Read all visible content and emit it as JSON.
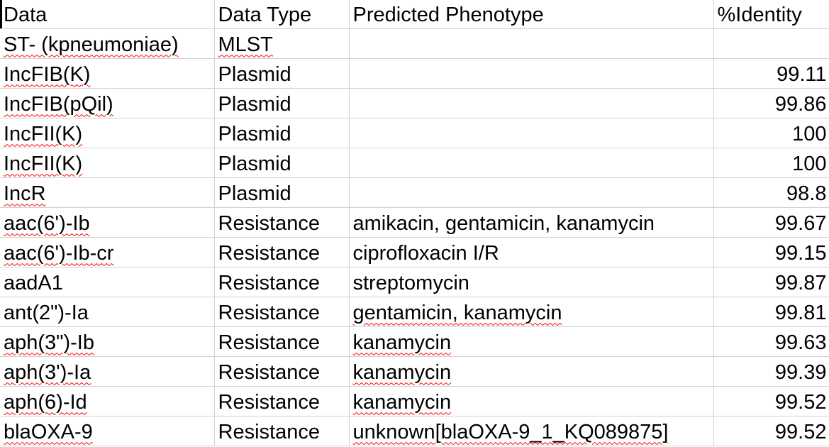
{
  "sheet": {
    "headers": [
      "Data",
      "Data Type",
      "Predicted Phenotype",
      "%Identity"
    ],
    "rows": [
      {
        "data": "ST- (kpneumoniae)",
        "type": "MLST",
        "phenotype": "",
        "identity": ""
      },
      {
        "data": "IncFIB(K)",
        "type": "Plasmid",
        "phenotype": "",
        "identity": "99.11"
      },
      {
        "data": "IncFIB(pQil)",
        "type": "Plasmid",
        "phenotype": "",
        "identity": "99.86"
      },
      {
        "data": "IncFII(K)",
        "type": "Plasmid",
        "phenotype": "",
        "identity": "100"
      },
      {
        "data": "IncFII(K)",
        "type": "Plasmid",
        "phenotype": "",
        "identity": "100"
      },
      {
        "data": "IncR",
        "type": "Plasmid",
        "phenotype": "",
        "identity": "98.8"
      },
      {
        "data": "aac(6')-Ib",
        "type": "Resistance",
        "phenotype": "amikacin, gentamicin, kanamycin",
        "identity": "99.67"
      },
      {
        "data": "aac(6')-Ib-cr",
        "type": "Resistance",
        "phenotype": "ciprofloxacin I/R",
        "identity": "99.15"
      },
      {
        "data": "aadA1",
        "type": "Resistance",
        "phenotype": "streptomycin",
        "identity": "99.87"
      },
      {
        "data": "ant(2\")-Ia",
        "type": "Resistance",
        "phenotype": "gentamicin, kanamycin",
        "identity": "99.81"
      },
      {
        "data": "aph(3\")-Ib",
        "type": "Resistance",
        "phenotype": "kanamycin",
        "identity": "99.63"
      },
      {
        "data": "aph(3')-Ia",
        "type": "Resistance",
        "phenotype": "kanamycin",
        "identity": "99.39"
      },
      {
        "data": "aph(6)-Id",
        "type": "Resistance",
        "phenotype": "kanamycin",
        "identity": "99.52"
      },
      {
        "data": "blaOXA-9",
        "type": "Resistance",
        "phenotype": "unknown[blaOXA-9_1_KQ089875]",
        "identity": "99.52"
      }
    ]
  }
}
